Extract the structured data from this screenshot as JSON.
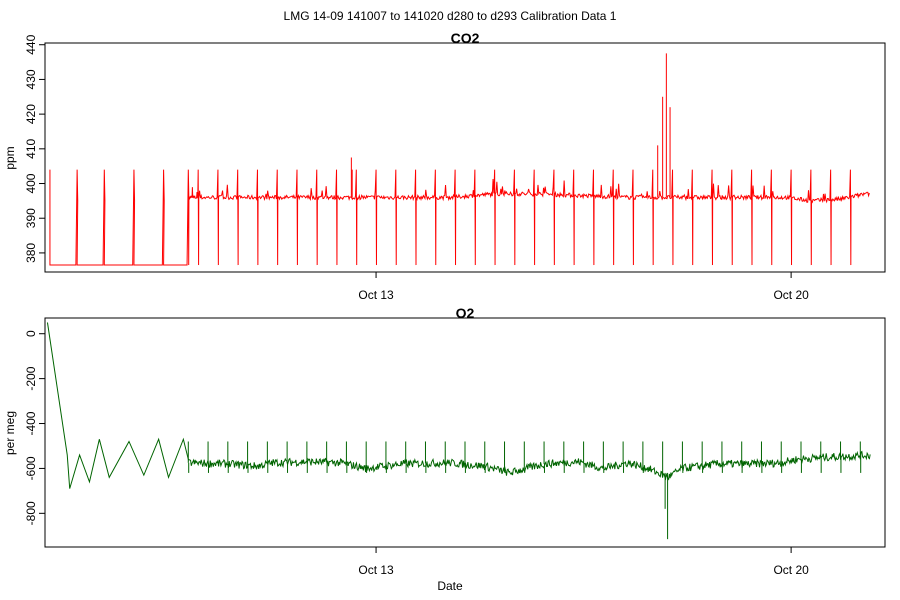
{
  "figure": {
    "title": "LMG   14-09    141007 to 141020    d280 to d293   Calibration Data 1",
    "xlabel": "Date"
  },
  "chart_data": [
    {
      "type": "line",
      "title": "CO2",
      "ylabel": "ppm",
      "ylim": [
        374.5,
        440.5
      ],
      "yticks": [
        380,
        390,
        400,
        410,
        420,
        430,
        440
      ],
      "xlim": [
        "2014-10-07 10:00",
        "2014-10-21 14:00"
      ],
      "xticks": [
        {
          "label": "Oct 13",
          "date": "2014-10-13"
        },
        {
          "label": "Oct 20",
          "date": "2014-10-20"
        }
      ],
      "grid": false,
      "colors": {
        "line": "#ff0000"
      },
      "series": [
        {
          "baseline": [
            [
              "2014-10-09 20:00",
              396
            ],
            [
              "2014-10-10 12:00",
              396
            ],
            [
              "2014-10-11 06:00",
              396
            ],
            [
              "2014-10-12 02:00",
              396
            ],
            [
              "2014-10-12 20:00",
              396
            ],
            [
              "2014-10-13 12:00",
              396
            ],
            [
              "2014-10-14 06:00",
              396
            ],
            [
              "2014-10-15 00:00",
              397
            ],
            [
              "2014-10-15 18:00",
              397
            ],
            [
              "2014-10-16 12:00",
              396.5
            ],
            [
              "2014-10-17 06:00",
              396
            ],
            [
              "2014-10-18 00:00",
              396
            ],
            [
              "2014-10-18 20:00",
              396
            ],
            [
              "2014-10-19 12:00",
              396
            ],
            [
              "2014-10-19 22:00",
              396
            ],
            [
              "2014-10-20 08:00",
              395
            ],
            [
              "2014-10-20 20:00",
              395.5
            ],
            [
              "2014-10-21 06:00",
              397
            ]
          ],
          "calibration_cycles": [
            "2014-10-07 12:00",
            "2014-10-07 23:00",
            "2014-10-08 10:00",
            "2014-10-08 22:00",
            "2014-10-09 10:00",
            "2014-10-09 20:00",
            "2014-10-10 00:00",
            "2014-10-10 08:00",
            "2014-10-10 16:00",
            "2014-10-11 00:00",
            "2014-10-11 08:00",
            "2014-10-11 16:00",
            "2014-10-12 00:00",
            "2014-10-12 08:00",
            "2014-10-12 16:00",
            "2014-10-13 00:00",
            "2014-10-13 08:00",
            "2014-10-13 16:00",
            "2014-10-14 00:00",
            "2014-10-14 08:00",
            "2014-10-14 16:00",
            "2014-10-15 00:00",
            "2014-10-15 08:00",
            "2014-10-15 16:00",
            "2014-10-16 00:00",
            "2014-10-16 08:00",
            "2014-10-16 16:00",
            "2014-10-17 00:00",
            "2014-10-17 08:00",
            "2014-10-17 16:00",
            "2014-10-18 00:00",
            "2014-10-18 08:00",
            "2014-10-18 16:00",
            "2014-10-19 00:00",
            "2014-10-19 08:00",
            "2014-10-19 16:00",
            "2014-10-20 00:00",
            "2014-10-20 08:00",
            "2014-10-20 16:00",
            "2014-10-21 00:00",
            "2014-10-21 08:00"
          ],
          "calibration_high": 404,
          "calibration_low": 376.5,
          "spikes": [
            [
              "2014-10-12 14:00",
              407.5
            ],
            [
              "2014-10-12 14:20",
              404
            ],
            [
              "2014-10-17 18:00",
              411
            ],
            [
              "2014-10-17 20:00",
              425
            ],
            [
              "2014-10-17 21:30",
              437.5
            ],
            [
              "2014-10-17 23:00",
              422
            ]
          ]
        }
      ]
    },
    {
      "type": "line",
      "title": "O2",
      "ylabel": "per meg",
      "ylim": [
        -950,
        70
      ],
      "yticks": [
        0,
        -200,
        -400,
        -600,
        -800
      ],
      "xlim": [
        "2014-10-07 10:00",
        "2014-10-21 14:00"
      ],
      "xticks": [
        {
          "label": "Oct 13",
          "date": "2014-10-13"
        },
        {
          "label": "Oct 20",
          "date": "2014-10-20"
        }
      ],
      "grid": false,
      "colors": {
        "line": "#006400"
      },
      "series": [
        {
          "start": [
            [
              "2014-10-07 11:00",
              50
            ],
            [
              "2014-10-07 19:00",
              -540
            ]
          ],
          "early_cycles": [
            [
              "2014-10-07 20:00",
              -690
            ],
            [
              "2014-10-08 00:00",
              -540
            ],
            [
              "2014-10-08 04:00",
              -660
            ],
            [
              "2014-10-08 08:00",
              -470
            ],
            [
              "2014-10-08 12:00",
              -640
            ],
            [
              "2014-10-08 20:00",
              -480
            ],
            [
              "2014-10-09 02:00",
              -630
            ],
            [
              "2014-10-09 08:00",
              -470
            ],
            [
              "2014-10-09 12:00",
              -640
            ],
            [
              "2014-10-09 18:00",
              -470
            ]
          ],
          "baseline": [
            [
              "2014-10-09 20:00",
              -575
            ],
            [
              "2014-10-10 12:00",
              -580
            ],
            [
              "2014-10-11 00:00",
              -590
            ],
            [
              "2014-10-11 06:00",
              -575
            ],
            [
              "2014-10-11 20:00",
              -570
            ],
            [
              "2014-10-12 10:00",
              -575
            ],
            [
              "2014-10-12 20:00",
              -600
            ],
            [
              "2014-10-13 10:00",
              -580
            ],
            [
              "2014-10-14 06:00",
              -575
            ],
            [
              "2014-10-14 20:00",
              -590
            ],
            [
              "2014-10-15 06:00",
              -620
            ],
            [
              "2014-10-15 20:00",
              -580
            ],
            [
              "2014-10-16 10:00",
              -570
            ],
            [
              "2014-10-16 20:00",
              -600
            ],
            [
              "2014-10-17 06:00",
              -575
            ],
            [
              "2014-10-17 14:00",
              -600
            ],
            [
              "2014-10-17 22:00",
              -640
            ],
            [
              "2014-10-18 04:00",
              -600
            ],
            [
              "2014-10-18 18:00",
              -580
            ],
            [
              "2014-10-19 08:00",
              -580
            ],
            [
              "2014-10-19 20:00",
              -575
            ],
            [
              "2014-10-20 02:00",
              -560
            ],
            [
              "2014-10-20 14:00",
              -550
            ],
            [
              "2014-10-21 00:00",
              -545
            ],
            [
              "2014-10-21 08:00",
              -540
            ]
          ],
          "spike_top": -480,
          "spike_bottom": -620,
          "dips": [
            [
              "2014-10-17 22:00",
              -915
            ],
            [
              "2014-10-17 21:00",
              -780
            ]
          ]
        }
      ]
    }
  ]
}
